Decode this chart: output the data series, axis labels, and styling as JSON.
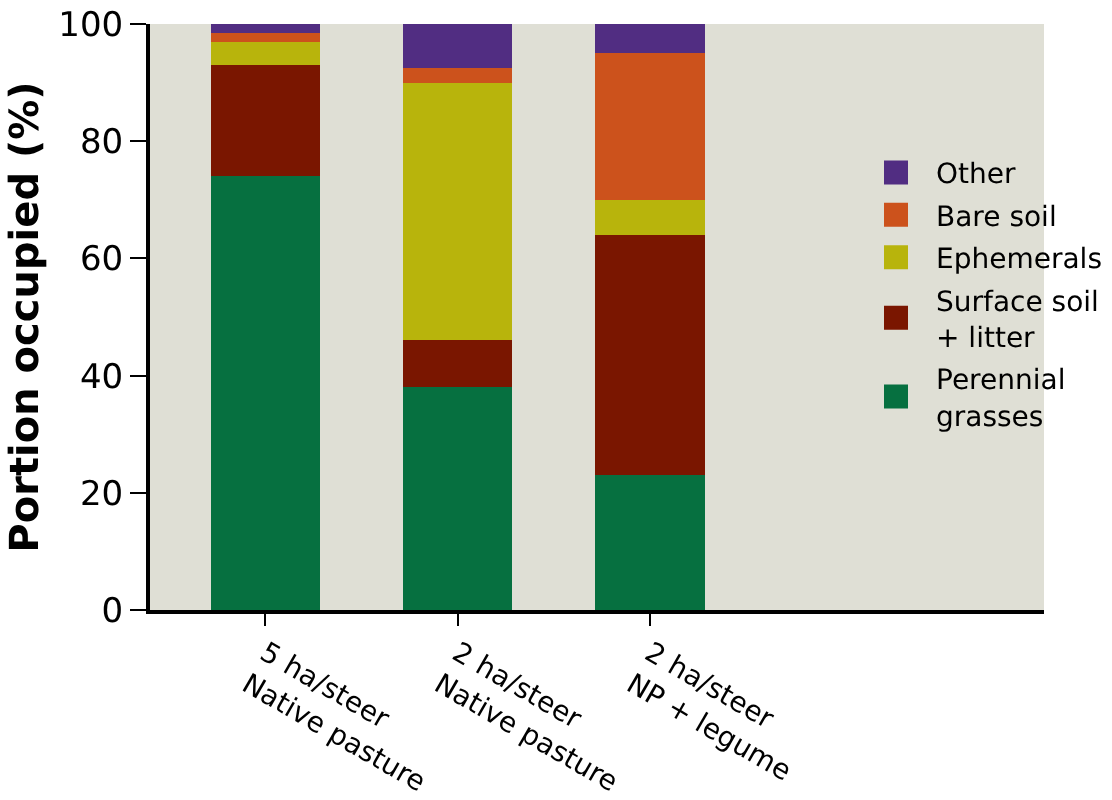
{
  "chart_data": {
    "type": "bar",
    "stacked": true,
    "ylabel": "Portion occupied (%)",
    "categories": [
      "5 ha/steer\nNative pasture",
      "2 ha/steer\nNative pasture",
      "2 ha/steer\nNP + legume"
    ],
    "series": [
      {
        "name": "Perennial\ngrasses",
        "color": "#067040",
        "values": [
          74,
          38,
          23
        ]
      },
      {
        "name": "Surface soil\n+ litter",
        "color": "#7a1600",
        "values": [
          19,
          8,
          41
        ]
      },
      {
        "name": "Ephemerals",
        "color": "#b8b40c",
        "values": [
          4,
          44,
          6
        ]
      },
      {
        "name": "Bare soil",
        "color": "#cc521c",
        "values": [
          1.5,
          2.5,
          25
        ]
      },
      {
        "name": "Other",
        "color": "#512d82",
        "values": [
          1.5,
          7.5,
          5
        ]
      }
    ],
    "ylim": [
      0,
      100
    ],
    "yticks": [
      0,
      20,
      40,
      60,
      80,
      100
    ],
    "grid": false,
    "legend": "right"
  }
}
